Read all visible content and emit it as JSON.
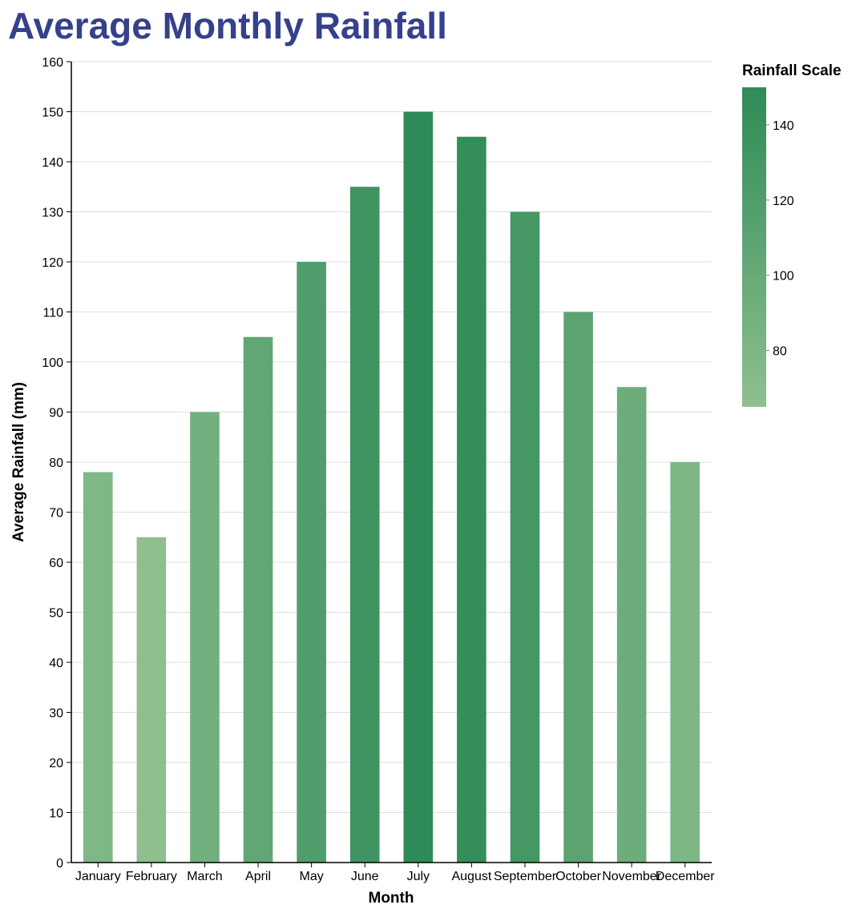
{
  "chart_data": {
    "type": "bar",
    "title": "Average Monthly Rainfall",
    "xlabel": "Month",
    "ylabel": "Average Rainfall (mm)",
    "categories": [
      "January",
      "February",
      "March",
      "April",
      "May",
      "June",
      "July",
      "August",
      "September",
      "October",
      "November",
      "December"
    ],
    "values": [
      78,
      65,
      90,
      105,
      120,
      135,
      150,
      145,
      130,
      110,
      95,
      80
    ],
    "ylim": [
      0,
      160
    ],
    "yticks": [
      0,
      10,
      20,
      30,
      40,
      50,
      60,
      70,
      80,
      90,
      100,
      110,
      120,
      130,
      140,
      150,
      160
    ],
    "grid": true,
    "legend": {
      "title": "Rainfall Scale",
      "placement": "right",
      "ticks": [
        80,
        100,
        120,
        140
      ],
      "domain": [
        65,
        150
      ],
      "color_low": "#8fbf8f",
      "color_high": "#2e8b57"
    },
    "colors": {
      "title": "#35418a",
      "grid": "#dddddd",
      "axis": "#000000"
    }
  }
}
